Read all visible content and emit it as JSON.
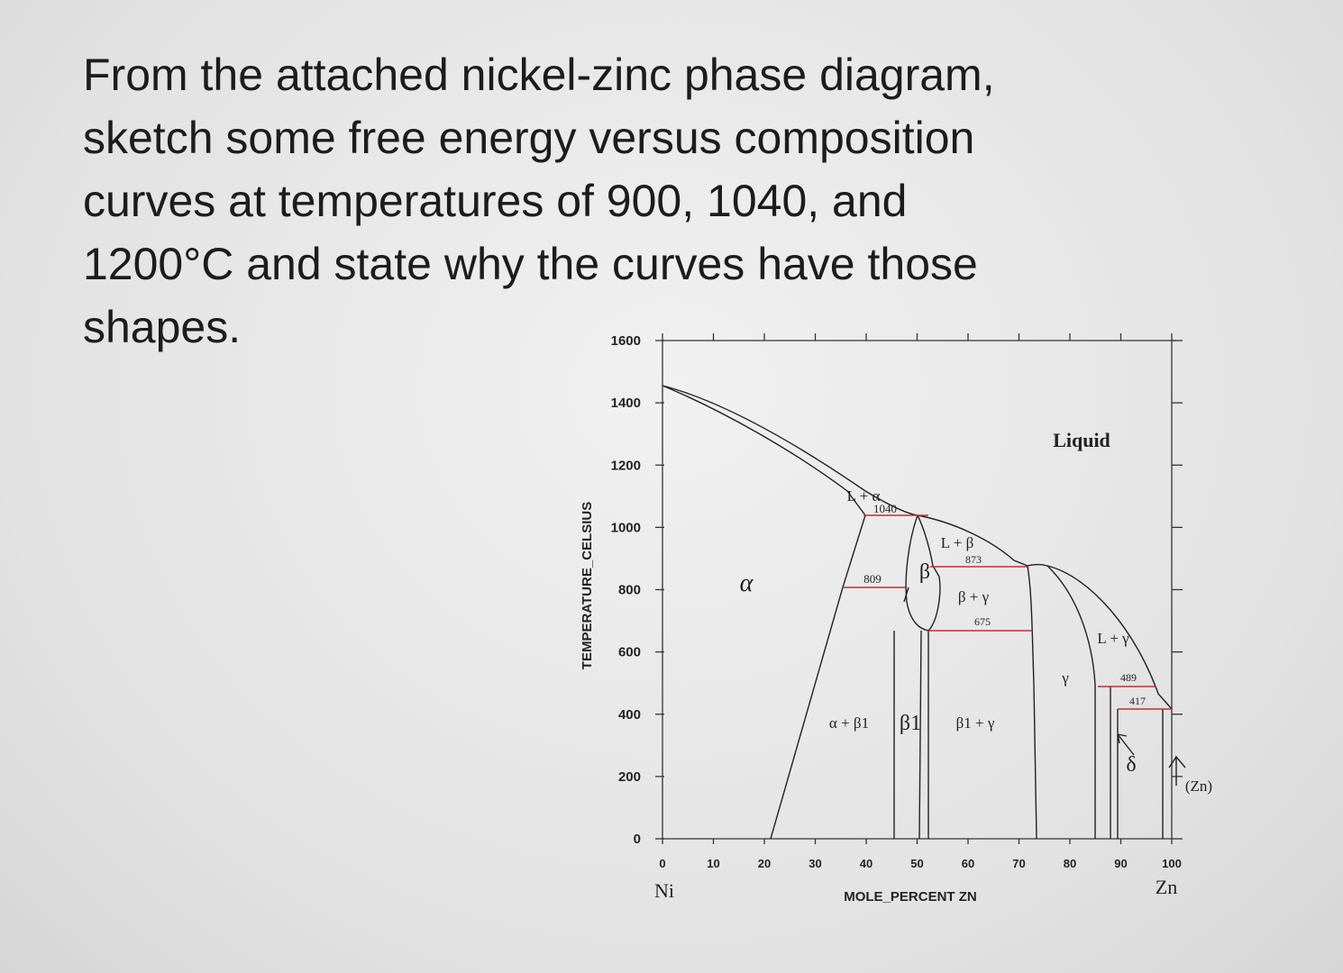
{
  "question": {
    "lines": [
      "From the attached nickel-zinc phase diagram,",
      "sketch some free energy versus composition",
      "curves at temperatures of 900, 1040, and",
      "1200°C and state why the curves have those",
      "shapes."
    ]
  },
  "diagram": {
    "y_axis_label": "TEMPERATURE_CELSIUS",
    "x_axis_label": "MOLE_PERCENT ZN",
    "yticks": [
      1600,
      1400,
      1200,
      1000,
      800,
      600,
      400,
      200,
      0
    ],
    "xticks": [
      0,
      10,
      20,
      30,
      40,
      50,
      60,
      70,
      80,
      90,
      100
    ],
    "left_element": "Ni",
    "right_element": "Zn",
    "regions": [
      "Liquid",
      "L + α",
      "α",
      "β",
      "L + β",
      "β + γ",
      "γ",
      "L + γ",
      "α + β1",
      "β1",
      "β1 + γ",
      "δ",
      "(Zn)"
    ],
    "isotherms": [
      "1040",
      "873",
      "809",
      "675",
      "489",
      "417"
    ]
  }
}
